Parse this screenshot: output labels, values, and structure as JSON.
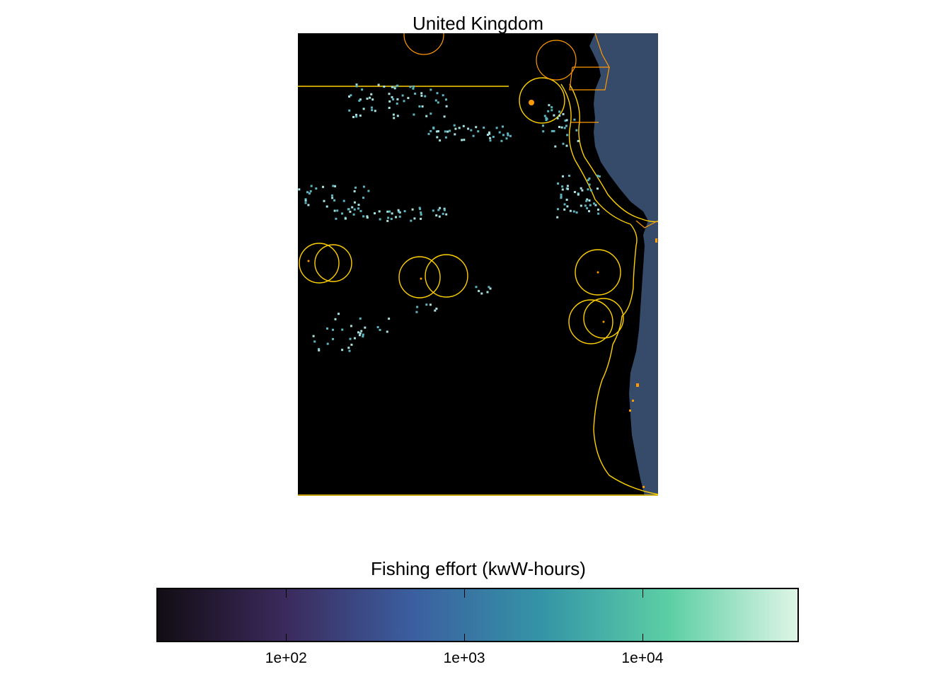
{
  "map": {
    "title": "United Kingdom",
    "colors": {
      "ocean": "#000000",
      "land": "#364a6a",
      "eez_boundary": "#ffd000",
      "country_boundary": "#ff9900",
      "effort_low": "#5bb4bf",
      "effort_high": "#a6e1df"
    },
    "features": [
      "ocean",
      "land",
      "eez-boundary",
      "country-boundary",
      "fishing-effort-cells"
    ]
  },
  "legend": {
    "title": "Fishing effort (kwW-hours)",
    "scale": "log",
    "colormap": [
      "#120d14",
      "#3b2a5c",
      "#3b5fa0",
      "#3494a6",
      "#5ccfa5",
      "#def5e5"
    ],
    "ticks": [
      {
        "label": "1e+02",
        "value": 100
      },
      {
        "label": "1e+03",
        "value": 1000
      },
      {
        "label": "1e+04",
        "value": 10000
      }
    ]
  }
}
